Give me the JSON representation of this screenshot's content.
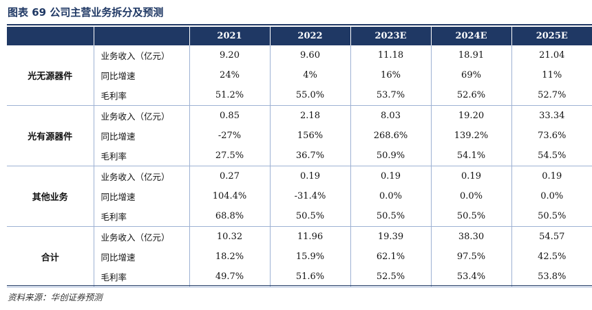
{
  "title": "图表 69  公司主营业务拆分及预测",
  "source": "资料来源：华创证券预测",
  "header": {
    "blank": "",
    "years": [
      "2021",
      "2022",
      "2023E",
      "2024E",
      "2025E"
    ]
  },
  "segments": [
    {
      "name": "光无源器件",
      "rows": [
        {
          "metric": "业务收入（亿元）",
          "values": [
            "9.20",
            "9.60",
            "11.18",
            "18.91",
            "21.04"
          ]
        },
        {
          "metric": "同比增速",
          "values": [
            "24%",
            "4%",
            "16%",
            "69%",
            "11%"
          ]
        },
        {
          "metric": "毛利率",
          "values": [
            "51.2%",
            "55.0%",
            "53.7%",
            "52.6%",
            "52.7%"
          ]
        }
      ]
    },
    {
      "name": "光有源器件",
      "rows": [
        {
          "metric": "业务收入（亿元）",
          "values": [
            "0.85",
            "2.18",
            "8.03",
            "19.20",
            "33.34"
          ]
        },
        {
          "metric": "同比增速",
          "values": [
            "-27%",
            "156%",
            "268.6%",
            "139.2%",
            "73.6%"
          ]
        },
        {
          "metric": "毛利率",
          "values": [
            "27.5%",
            "36.7%",
            "50.9%",
            "54.1%",
            "54.5%"
          ]
        }
      ]
    },
    {
      "name": "其他业务",
      "rows": [
        {
          "metric": "业务收入（亿元）",
          "values": [
            "0.27",
            "0.19",
            "0.19",
            "0.19",
            "0.19"
          ]
        },
        {
          "metric": "同比增速",
          "values": [
            "104.4%",
            "-31.4%",
            "0.0%",
            "0.0%",
            "0.0%"
          ]
        },
        {
          "metric": "毛利率",
          "values": [
            "68.8%",
            "50.5%",
            "50.5%",
            "50.5%",
            "50.5%"
          ]
        }
      ]
    },
    {
      "name": "合计",
      "rows": [
        {
          "metric": "业务收入（亿元）",
          "values": [
            "10.32",
            "11.96",
            "19.39",
            "38.30",
            "54.57"
          ]
        },
        {
          "metric": "同比增速",
          "values": [
            "18.2%",
            "15.9%",
            "62.1%",
            "97.5%",
            "42.5%"
          ]
        },
        {
          "metric": "毛利率",
          "values": [
            "49.7%",
            "51.6%",
            "52.5%",
            "53.4%",
            "53.8%"
          ]
        }
      ]
    }
  ]
}
